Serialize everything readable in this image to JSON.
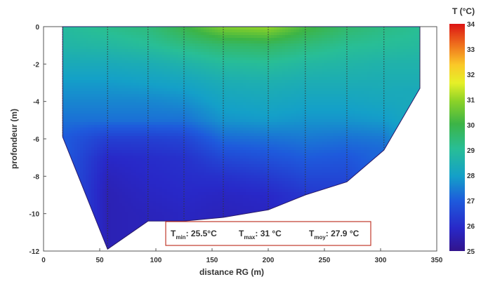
{
  "chart_data": {
    "type": "heatmap",
    "title": "",
    "xlabel": "distance RG (m)",
    "ylabel": "profondeur (m)",
    "xlim": [
      0,
      350
    ],
    "ylim": [
      -12,
      0
    ],
    "xticks": [
      0,
      50,
      100,
      150,
      200,
      250,
      300,
      350
    ],
    "yticks": [
      0,
      -2,
      -4,
      -6,
      -8,
      -10,
      -12
    ],
    "colorbar": {
      "title": "T (°C)",
      "ticks": [
        25,
        26,
        27,
        28,
        29,
        30,
        31,
        32,
        33,
        34
      ],
      "range": [
        25,
        34
      ]
    },
    "profile_x": [
      17,
      57,
      93,
      125,
      160,
      200,
      233,
      270,
      303,
      335
    ],
    "bottom_depth": [
      -5.9,
      -11.9,
      -10.4,
      -10.4,
      -10.2,
      -9.8,
      -9.0,
      -8.3,
      -6.6,
      -3.3
    ],
    "temperature_field": [
      {
        "x": 17,
        "depths": [
          0,
          -1,
          -2,
          -3,
          -4,
          -5,
          -5.9
        ],
        "temps": [
          28.9,
          28.7,
          28.3,
          27.9,
          27.6,
          27.3,
          27.0
        ]
      },
      {
        "x": 57,
        "depths": [
          0,
          -1,
          -2,
          -3,
          -4,
          -5,
          -6,
          -7,
          -8,
          -9,
          -10,
          -11,
          -11.9
        ],
        "temps": [
          29.2,
          28.8,
          28.3,
          27.9,
          27.6,
          27.3,
          26.4,
          25.9,
          25.7,
          25.6,
          25.6,
          25.6,
          25.6
        ]
      },
      {
        "x": 93,
        "depths": [
          0,
          -1,
          -2,
          -3,
          -4,
          -5,
          -6,
          -7,
          -8,
          -9,
          -10,
          -10.4
        ],
        "temps": [
          29.4,
          29.0,
          28.4,
          28.0,
          27.6,
          27.3,
          26.4,
          26.0,
          25.9,
          25.8,
          25.7,
          25.7
        ]
      },
      {
        "x": 125,
        "depths": [
          0,
          -1,
          -2,
          -3,
          -4,
          -5,
          -6,
          -7,
          -8,
          -9,
          -10,
          -10.4
        ],
        "temps": [
          30.0,
          29.3,
          28.6,
          28.1,
          27.7,
          27.3,
          26.5,
          26.1,
          26.0,
          25.9,
          25.8,
          25.8
        ]
      },
      {
        "x": 160,
        "depths": [
          0,
          -1,
          -2,
          -3,
          -4,
          -5,
          -6,
          -7,
          -8,
          -9,
          -10,
          -10.2
        ],
        "temps": [
          30.8,
          29.6,
          28.9,
          28.4,
          28.1,
          27.8,
          27.2,
          26.6,
          26.1,
          25.8,
          25.7,
          25.7
        ]
      },
      {
        "x": 200,
        "depths": [
          0,
          -1,
          -2,
          -3,
          -4,
          -5,
          -6,
          -7,
          -8,
          -9,
          -9.8
        ],
        "temps": [
          31.0,
          29.7,
          29.0,
          28.5,
          28.2,
          27.9,
          27.3,
          26.8,
          26.3,
          25.9,
          25.8
        ]
      },
      {
        "x": 233,
        "depths": [
          0,
          -1,
          -2,
          -3,
          -4,
          -5,
          -6,
          -7,
          -8,
          -9
        ],
        "temps": [
          30.2,
          29.4,
          28.8,
          28.4,
          28.1,
          27.8,
          27.4,
          27.0,
          26.6,
          26.2
        ]
      },
      {
        "x": 270,
        "depths": [
          0,
          -1,
          -2,
          -3,
          -4,
          -5,
          -6,
          -7,
          -8,
          -8.3
        ],
        "temps": [
          29.6,
          29.1,
          28.7,
          28.4,
          28.1,
          27.8,
          27.3,
          26.9,
          26.6,
          26.5
        ]
      },
      {
        "x": 303,
        "depths": [
          0,
          -1,
          -2,
          -3,
          -4,
          -5,
          -6,
          -6.6
        ],
        "temps": [
          29.3,
          29.0,
          28.6,
          28.4,
          28.2,
          27.9,
          27.4,
          27.2
        ]
      },
      {
        "x": 335,
        "depths": [
          0,
          -1,
          -2,
          -3,
          -3.3
        ],
        "temps": [
          29.1,
          28.9,
          28.6,
          28.4,
          28.3
        ]
      }
    ],
    "stats": {
      "tmin_label": "T",
      "tmin_sub": "min",
      "tmin_value": ": 25.5°C",
      "tmax_label": "T",
      "tmax_sub": "max",
      "tmax_value": ": 31 °C",
      "tmoy_label": "T",
      "tmoy_sub": "moy",
      "tmoy_value": ": 27.9 °C"
    }
  },
  "colors": {
    "stats_border": "#c0392b",
    "measure_line": "#333333"
  }
}
